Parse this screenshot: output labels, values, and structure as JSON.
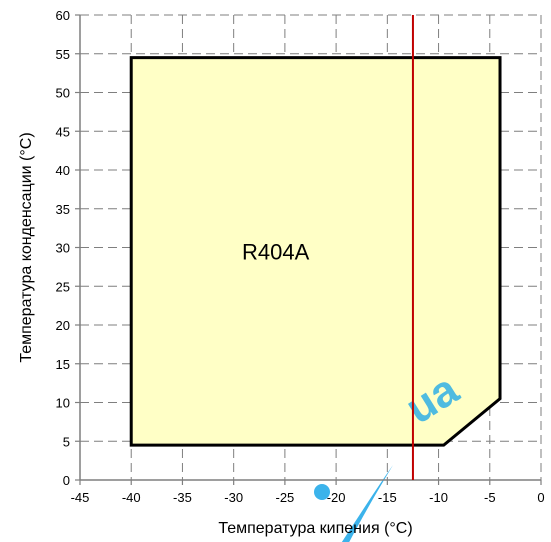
{
  "chart_data": {
    "type": "area",
    "title": "",
    "xlabel": "Температура кипения (°C)",
    "ylabel": "Температура конденсации (°C)",
    "xlim": [
      -45,
      0
    ],
    "ylim": [
      0,
      60
    ],
    "x_ticks": [
      -45,
      -40,
      -35,
      -30,
      -25,
      -20,
      -15,
      -10,
      -5,
      0
    ],
    "y_ticks": [
      0,
      5,
      10,
      15,
      20,
      25,
      30,
      35,
      40,
      45,
      50,
      55,
      60
    ],
    "grid": true,
    "envelope": {
      "name": "R404A",
      "fill_color": "#ffffc6",
      "edge_color": "#000000",
      "points": [
        {
          "x": -40,
          "y": 4.5
        },
        {
          "x": -40,
          "y": 54.5
        },
        {
          "x": -4,
          "y": 54.5
        },
        {
          "x": -4,
          "y": 10.5
        },
        {
          "x": -9.5,
          "y": 4.5
        }
      ]
    },
    "reference_line": {
      "x": -12.5,
      "color": "#c00000"
    },
    "watermark_color": "#1aa6e8"
  }
}
